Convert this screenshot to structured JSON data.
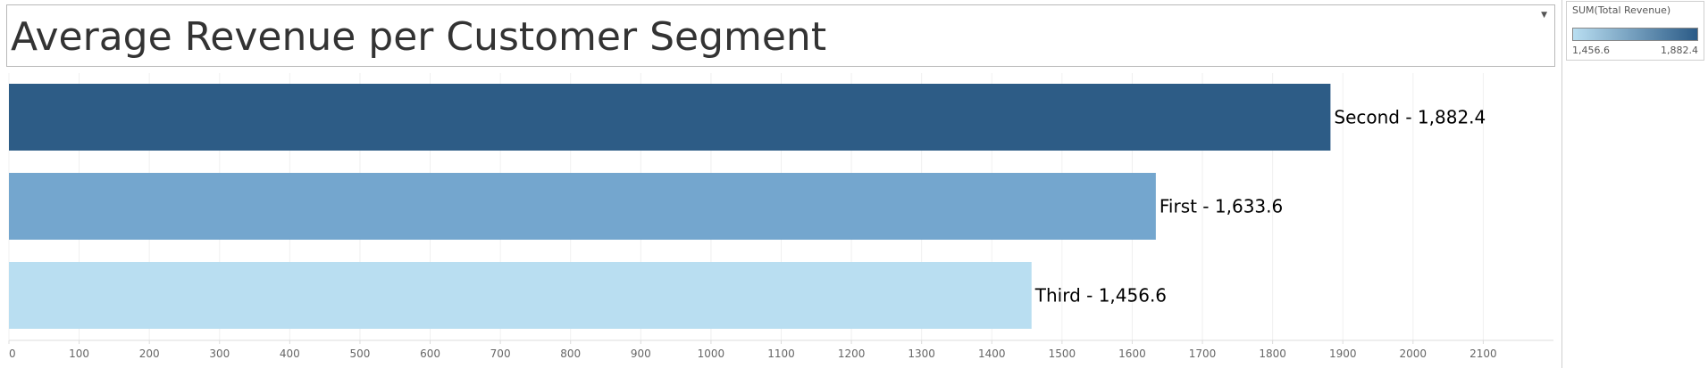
{
  "title": "Average Revenue per Customer Segment",
  "legend": {
    "title": "SUM(Total Revenue)",
    "min_label": "1,456.6",
    "max_label": "1,882.4",
    "color_low": "#b9def1",
    "color_high": "#2b5b87"
  },
  "chart_data": {
    "type": "bar",
    "orientation": "horizontal",
    "categories": [
      "Second",
      "First",
      "Third"
    ],
    "values": [
      1882.4,
      1633.6,
      1456.6
    ],
    "bar_labels": [
      "Second - 1,882.4",
      "First - 1,633.6",
      "Third - 1,456.6"
    ],
    "colors": [
      "#2d5c86",
      "#74a6ce",
      "#b9def1"
    ],
    "xlim": [
      0,
      2200
    ],
    "x_ticks": [
      0,
      100,
      200,
      300,
      400,
      500,
      600,
      700,
      800,
      900,
      1000,
      1100,
      1200,
      1300,
      1400,
      1500,
      1600,
      1700,
      1800,
      1900,
      2000,
      2100
    ],
    "grid": true,
    "xlabel": "",
    "ylabel": ""
  }
}
